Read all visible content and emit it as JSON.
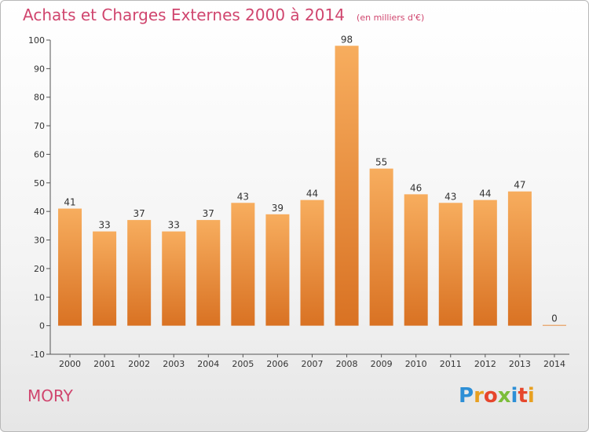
{
  "header": {
    "title": "Achats et Charges Externes 2000 à 2014",
    "subtitle": "(en milliers d'€)"
  },
  "footer": {
    "commune": "MORY",
    "logo": "Proxiti"
  },
  "colors": {
    "title": "#d0456e",
    "bar_light": "#f7ad5e",
    "bar_dark": "#d97223"
  },
  "chart_data": {
    "type": "bar",
    "title": "Achats et Charges Externes 2000 à 2014",
    "subtitle": "(en milliers d'€)",
    "categories": [
      "2000",
      "2001",
      "2002",
      "2003",
      "2004",
      "2005",
      "2006",
      "2007",
      "2008",
      "2009",
      "2010",
      "2011",
      "2012",
      "2013",
      "2014"
    ],
    "values": [
      41,
      33,
      37,
      33,
      37,
      43,
      39,
      44,
      98,
      55,
      46,
      43,
      44,
      47,
      0
    ],
    "ylim": [
      -10,
      100
    ],
    "yticks": [
      -10,
      0,
      10,
      20,
      30,
      40,
      50,
      60,
      70,
      80,
      90,
      100
    ],
    "grid": false,
    "legend": "none"
  }
}
